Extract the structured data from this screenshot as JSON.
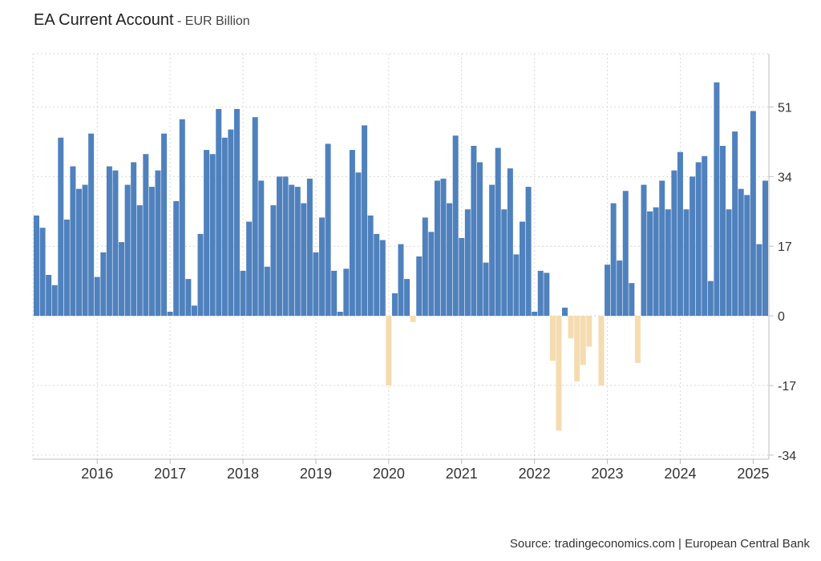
{
  "header": {
    "title": "EA Current Account",
    "subtitle": "- EUR Billion"
  },
  "footer": {
    "source": "Source: tradingeconomics.com | European Central Bank"
  },
  "colors": {
    "positive": "#4f81bd",
    "negative": "#f5dcb0",
    "grid": "#d9d9d9",
    "axis": "#bfbfbf",
    "text": "#333333"
  },
  "chart_data": {
    "type": "bar",
    "title": "EA Current Account",
    "subtitle": "- EUR Billion",
    "xlabel": "",
    "ylabel": "",
    "ylim": [
      -35,
      64
    ],
    "yticks": [
      -34,
      -17,
      0,
      17,
      34,
      51
    ],
    "y_axis_side": "right",
    "grid": true,
    "x_start": "2015-03",
    "frequency": "monthly",
    "xtick_labels": [
      "2016",
      "2017",
      "2018",
      "2019",
      "2020",
      "2021",
      "2022",
      "2023",
      "2024",
      "2025"
    ],
    "xtick_months": [
      "2016-01",
      "2017-01",
      "2018-01",
      "2019-01",
      "2020-01",
      "2021-01",
      "2022-01",
      "2023-01",
      "2024-01",
      "2025-01"
    ],
    "series": [
      {
        "values": [
          24.5,
          21.5,
          10.0,
          7.5,
          43.5,
          23.5,
          36.5,
          31.0,
          32.0,
          44.5,
          9.5,
          15.5,
          36.5,
          35.5,
          18.0,
          32.0,
          37.5,
          27.0,
          39.5,
          31.5,
          35.5,
          44.5,
          1.0,
          28.0,
          48.0,
          9.0,
          2.5,
          20.0,
          40.5,
          39.5,
          50.5,
          43.5,
          45.5,
          50.5,
          11.0,
          23.0,
          48.5,
          33.0,
          12.0,
          27.0,
          34.0,
          34.0,
          32.0,
          31.5,
          27.5,
          33.5,
          15.5,
          24.0,
          42.0,
          11.0,
          1.0,
          11.5,
          40.5,
          35.0,
          46.5,
          24.5,
          20.0,
          18.5,
          -17.0,
          5.5,
          17.5,
          9.0,
          -1.5,
          14.5,
          24.0,
          20.5,
          33.0,
          33.5,
          27.5,
          44.0,
          19.0,
          26.0,
          41.5,
          37.5,
          13.0,
          32.0,
          41.0,
          26.0,
          36.0,
          15.0,
          23.0,
          31.5,
          1.0,
          11.0,
          10.5,
          -11.0,
          -28.0,
          2.0,
          -5.5,
          -16.0,
          -12.0,
          -7.5,
          0,
          -17.0,
          12.5,
          27.5,
          13.5,
          30.5,
          8.0,
          -11.5,
          32.0,
          25.5,
          26.5,
          33.0,
          26.0,
          35.5,
          40.0,
          26.0,
          34.0,
          37.5,
          39.0,
          8.5,
          57.0,
          41.5,
          26.0,
          45.0,
          31.0,
          29.5,
          50.0,
          17.5,
          33.0
        ]
      }
    ]
  }
}
